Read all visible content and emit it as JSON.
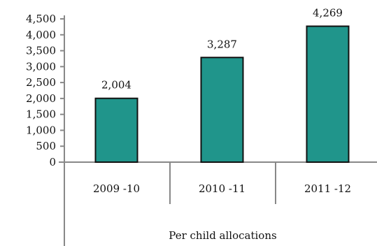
{
  "chart_data": {
    "type": "bar",
    "categories": [
      "2009 -10",
      "2010 -11",
      "2011 -12"
    ],
    "values": [
      2004,
      3287,
      4269
    ],
    "data_labels": [
      "2,004",
      "3,287",
      "4,269"
    ],
    "title": "",
    "xlabel": "Per child allocations",
    "ylabel": "",
    "ylim": [
      0,
      4500
    ],
    "yticks": [
      0,
      500,
      1000,
      1500,
      2000,
      2500,
      3000,
      3500,
      4000,
      4500
    ],
    "ytick_labels": [
      "0",
      "500",
      "1,000",
      "1,500",
      "2,000",
      "2,500",
      "3,000",
      "3,500",
      "4,000",
      "4,500"
    ],
    "grid": false,
    "legend": "none",
    "bar_color": "#20958b"
  }
}
